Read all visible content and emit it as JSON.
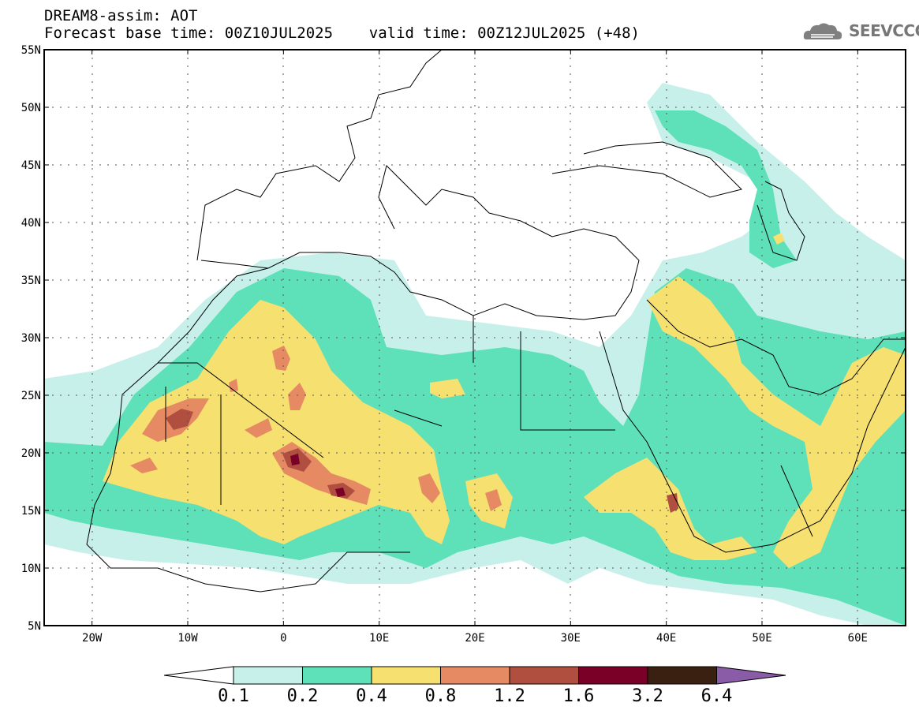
{
  "header": {
    "line1": "DREAM8-assim: AOT",
    "line2": "Forecast base time: 00Z10JUL2025    valid time: 00Z12JUL2025 (+48)"
  },
  "logo": {
    "text": "SEEVCCC",
    "icon": "cloud-icon"
  },
  "map": {
    "lon_range": [
      -25,
      65
    ],
    "lat_range": [
      5,
      55
    ],
    "lat_ticks": [
      "55N",
      "50N",
      "45N",
      "40N",
      "35N",
      "30N",
      "25N",
      "20N",
      "15N",
      "10N",
      "5N"
    ],
    "lon_ticks": [
      "20W",
      "10W",
      "0",
      "10E",
      "20E",
      "30E",
      "40E",
      "50E",
      "60E"
    ],
    "grid": true
  },
  "colorbar": {
    "levels": [
      "0.1",
      "0.2",
      "0.4",
      "0.8",
      "1.2",
      "1.6",
      "3.2",
      "6.4"
    ],
    "colors": [
      "#c8f0ea",
      "#5ee0b8",
      "#f5e070",
      "#e68a64",
      "#b04e40",
      "#7a0028",
      "#3a2010",
      "#8a5ca8"
    ],
    "under_color": "#ffffff"
  }
}
